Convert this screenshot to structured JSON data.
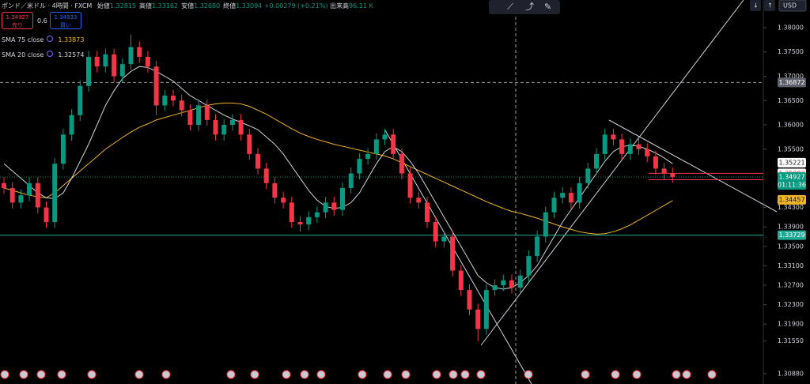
{
  "chart_data": {
    "type": "candlestick",
    "title": "ポンド／米ドル · 4時間 · FXCM",
    "ohlc_header": [
      {
        "label": "始値",
        "value": "1.32815"
      },
      {
        "label": "高値",
        "value": "1.33162"
      },
      {
        "label": "安値",
        "value": "1.32680"
      },
      {
        "label": "終値",
        "value": "1.33094"
      }
    ],
    "change": "+0.00279 (+0.21%)",
    "volume": {
      "label": "出来高",
      "value": "96.11 K"
    },
    "currency": "USD",
    "sell": {
      "price": "1.34927",
      "label": "売り"
    },
    "spread": "0.6",
    "buy": {
      "price": "1.34933",
      "label": "買い"
    },
    "up_color": "#089981",
    "down_color": "#f23645",
    "open": [
      1.348,
      1.347,
      1.344,
      1.3455,
      1.348,
      1.343,
      1.34,
      1.352,
      1.358,
      1.362,
      1.368,
      1.374,
      1.372,
      1.3745,
      1.37,
      1.3725,
      1.376,
      1.374,
      1.372,
      1.364,
      1.366,
      1.365,
      1.363,
      1.36,
      1.364,
      1.361,
      1.358,
      1.36,
      1.361,
      1.358,
      1.354,
      1.351,
      1.348,
      1.345,
      1.344,
      1.34,
      1.3395,
      1.341,
      1.342,
      1.344,
      1.3425,
      1.347,
      1.35,
      1.353,
      1.354,
      1.357,
      1.358,
      1.354,
      1.35,
      1.345,
      1.344,
      1.34,
      1.336,
      1.337,
      1.33,
      1.326,
      1.322,
      1.318,
      1.326,
      1.327,
      1.328,
      1.3265,
      1.329,
      1.333,
      1.337,
      1.342,
      1.345,
      1.346,
      1.344,
      1.348,
      1.351,
      1.354,
      1.358,
      1.357,
      1.354,
      1.356,
      1.355,
      1.3535,
      1.351,
      1.35
    ],
    "high": [
      1.3492,
      1.3482,
      1.3467,
      1.3492,
      1.3492,
      1.3442,
      1.3532,
      1.3592,
      1.3632,
      1.3692,
      1.3752,
      1.3752,
      1.3757,
      1.3757,
      1.3737,
      1.3785,
      1.3772,
      1.3752,
      1.3732,
      1.3672,
      1.3672,
      1.3662,
      1.3642,
      1.3652,
      1.3652,
      1.3622,
      1.3612,
      1.3622,
      1.3622,
      1.3592,
      1.3552,
      1.3522,
      1.3492,
      1.3462,
      1.3452,
      1.3412,
      1.3422,
      1.3432,
      1.3452,
      1.3452,
      1.3482,
      1.3512,
      1.3542,
      1.3552,
      1.3582,
      1.3592,
      1.3592,
      1.3552,
      1.3512,
      1.3462,
      1.3452,
      1.3412,
      1.3382,
      1.3382,
      1.3312,
      1.3272,
      1.3232,
      1.3272,
      1.3282,
      1.3292,
      1.3292,
      1.3302,
      1.3342,
      1.3382,
      1.3432,
      1.3462,
      1.3472,
      1.3472,
      1.3492,
      1.3522,
      1.3552,
      1.3592,
      1.3592,
      1.3582,
      1.3572,
      1.3572,
      1.3562,
      1.3547,
      1.3522,
      1.3512
    ],
    "low": [
      1.3458,
      1.3428,
      1.3428,
      1.3443,
      1.3418,
      1.3388,
      1.3388,
      1.3508,
      1.3568,
      1.3608,
      1.3668,
      1.3708,
      1.3708,
      1.3688,
      1.3688,
      1.3713,
      1.3728,
      1.3708,
      1.362,
      1.3628,
      1.3638,
      1.3618,
      1.3588,
      1.3588,
      1.3598,
      1.3568,
      1.3568,
      1.3588,
      1.3568,
      1.3528,
      1.3498,
      1.3468,
      1.3438,
      1.3428,
      1.3388,
      1.338,
      1.3383,
      1.3398,
      1.3408,
      1.3413,
      1.3413,
      1.3458,
      1.3488,
      1.3518,
      1.3528,
      1.3558,
      1.3528,
      1.3488,
      1.3438,
      1.3428,
      1.3388,
      1.3348,
      1.3348,
      1.3288,
      1.3248,
      1.3208,
      1.3155,
      1.3168,
      1.3248,
      1.3258,
      1.3253,
      1.3253,
      1.3278,
      1.3318,
      1.3358,
      1.3408,
      1.3438,
      1.3428,
      1.3428,
      1.3468,
      1.3498,
      1.3528,
      1.3558,
      1.3528,
      1.3528,
      1.3538,
      1.3523,
      1.3498,
      1.3488,
      1.3481
    ],
    "close": [
      1.347,
      1.344,
      1.3455,
      1.348,
      1.343,
      1.34,
      1.352,
      1.358,
      1.362,
      1.368,
      1.374,
      1.372,
      1.3745,
      1.37,
      1.3725,
      1.376,
      1.374,
      1.372,
      1.364,
      1.366,
      1.365,
      1.363,
      1.36,
      1.364,
      1.361,
      1.358,
      1.36,
      1.361,
      1.358,
      1.354,
      1.351,
      1.348,
      1.345,
      1.344,
      1.34,
      1.3395,
      1.341,
      1.342,
      1.344,
      1.3425,
      1.347,
      1.35,
      1.353,
      1.354,
      1.357,
      1.358,
      1.354,
      1.35,
      1.345,
      1.344,
      1.34,
      1.336,
      1.337,
      1.33,
      1.326,
      1.322,
      1.318,
      1.326,
      1.327,
      1.328,
      1.3265,
      1.329,
      1.333,
      1.337,
      1.342,
      1.345,
      1.346,
      1.344,
      1.348,
      1.351,
      1.354,
      1.358,
      1.357,
      1.354,
      1.356,
      1.355,
      1.3535,
      1.351,
      1.35,
      1.3493
    ],
    "sma": [
      {
        "name": "SMA 75 close",
        "last": "1.33873",
        "color": "#f0b429",
        "values": [
          1.347,
          1.3465,
          1.346,
          1.3455,
          1.3452,
          1.345,
          1.346,
          1.3475,
          1.349,
          1.3505,
          1.352,
          1.3535,
          1.355,
          1.3562,
          1.3574,
          1.3585,
          1.3595,
          1.3602,
          1.361,
          1.3615,
          1.362,
          1.3625,
          1.363,
          1.3635,
          1.364,
          1.3643,
          1.3645,
          1.3645,
          1.3643,
          1.3638,
          1.363,
          1.3622,
          1.3612,
          1.3602,
          1.3592,
          1.3583,
          1.3576,
          1.357,
          1.3565,
          1.356,
          1.3556,
          1.3552,
          1.3548,
          1.3544,
          1.354,
          1.3536,
          1.353,
          1.3522,
          1.3514,
          1.3506,
          1.3498,
          1.349,
          1.3482,
          1.3474,
          1.3466,
          1.3458,
          1.345,
          1.3442,
          1.3435,
          1.3428,
          1.3422,
          1.3418,
          1.3413,
          1.3408,
          1.3402,
          1.3396,
          1.339,
          1.3385,
          1.338,
          1.3377,
          1.3375,
          1.3376,
          1.338,
          1.3386,
          1.3394,
          1.3404,
          1.3414,
          1.3424,
          1.3434,
          1.3444
        ]
      },
      {
        "name": "SMA 20 close",
        "last": "1.32574",
        "color": "#d1d4dc",
        "values": [
          1.352,
          1.3505,
          1.349,
          1.3475,
          1.346,
          1.345,
          1.3448,
          1.346,
          1.349,
          1.3525,
          1.356,
          1.36,
          1.364,
          1.367,
          1.3695,
          1.371,
          1.372,
          1.3718,
          1.371,
          1.37,
          1.369,
          1.3675,
          1.366,
          1.365,
          1.364,
          1.363,
          1.362,
          1.3612,
          1.3605,
          1.3598,
          1.359,
          1.3575,
          1.356,
          1.354,
          1.3515,
          1.349,
          1.3465,
          1.3445,
          1.3432,
          1.3428,
          1.343,
          1.344,
          1.346,
          1.349,
          1.352,
          1.3545,
          1.3555,
          1.3545,
          1.3525,
          1.35,
          1.347,
          1.344,
          1.341,
          1.338,
          1.335,
          1.332,
          1.329,
          1.3275,
          1.3265,
          1.3262,
          1.3265,
          1.3275,
          1.329,
          1.331,
          1.334,
          1.337,
          1.34,
          1.3425,
          1.345,
          1.3475,
          1.35,
          1.3525,
          1.3545,
          1.3555,
          1.3558,
          1.3556,
          1.355,
          1.3542,
          1.3532,
          1.352
        ]
      }
    ],
    "ylim": [
      1.30667,
      1.38569
    ],
    "yticks": [
      {
        "value": 1.38,
        "label": "1.38000"
      },
      {
        "value": 1.375,
        "label": "1.37500"
      },
      {
        "value": 1.37,
        "label": "1.37000"
      },
      {
        "value": 1.365,
        "label": "1.36500"
      },
      {
        "value": 1.36,
        "label": "1.36000"
      },
      {
        "value": 1.355,
        "label": "1.35500"
      },
      {
        "value": 1.343,
        "label": "1.34300"
      },
      {
        "value": 1.339,
        "label": "1.33900"
      },
      {
        "value": 1.335,
        "label": "1.33500"
      },
      {
        "value": 1.331,
        "label": "1.33100"
      },
      {
        "value": 1.327,
        "label": "1.32700"
      },
      {
        "value": 1.323,
        "label": "1.32300"
      },
      {
        "value": 1.319,
        "label": "1.31900"
      },
      {
        "value": 1.3155,
        "label": "1.31550"
      },
      {
        "value": 1.3088,
        "label": "1.30880"
      }
    ],
    "price_labels": [
      {
        "value": 1.36872,
        "bg": "#5d606b",
        "fg": "#ffffff",
        "line": "crosshair"
      },
      {
        "value": 1.35221,
        "bg": "#ffffff",
        "fg": "#131722"
      },
      {
        "value": 1.35003,
        "bg": "#ffffff",
        "fg": "#f23645",
        "line": "red"
      },
      {
        "value": 1.34871,
        "bg": "#f23645",
        "fg": "#ffffff",
        "line": "red"
      },
      {
        "value": 1.34457,
        "bg": "#f0b429",
        "fg": "#131722"
      },
      {
        "value": 1.33729,
        "bg": "#22ab94",
        "fg": "#ffffff",
        "line": "teal"
      }
    ],
    "last_price": {
      "value": 1.34927,
      "countdown": "01:11:36",
      "bg": "#089981",
      "fg": "#ffffff"
    }
  }
}
